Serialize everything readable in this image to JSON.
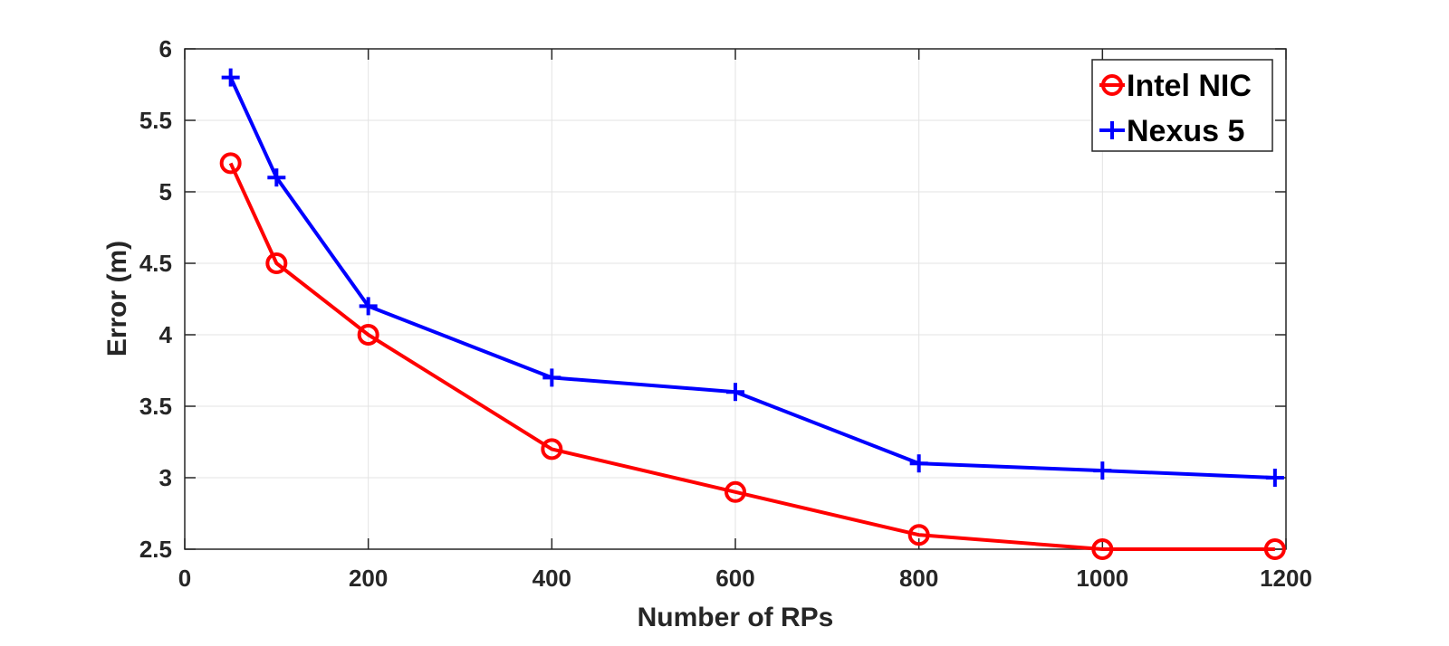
{
  "chart_data": {
    "type": "line",
    "xlabel": "Number of RPs",
    "ylabel": "Error (m)",
    "xlim": [
      0,
      1200
    ],
    "ylim": [
      2.5,
      6
    ],
    "xticks": [
      "0",
      "200",
      "400",
      "600",
      "800",
      "1000",
      "1200"
    ],
    "yticks": [
      "2.5",
      "3",
      "3.5",
      "4",
      "4.5",
      "5",
      "5.5",
      "6"
    ],
    "grid": true,
    "legend_position": "top-right",
    "series": [
      {
        "name": "Intel NIC",
        "color": "#ff0000",
        "marker": "circle",
        "x": [
          50,
          100,
          200,
          400,
          600,
          800,
          1000,
          1188
        ],
        "y": [
          5.2,
          4.5,
          4.0,
          3.2,
          2.9,
          2.6,
          2.5,
          2.5
        ]
      },
      {
        "name": "Nexus 5",
        "color": "#0000ff",
        "marker": "plus",
        "x": [
          50,
          100,
          200,
          400,
          600,
          800,
          1000,
          1188
        ],
        "y": [
          5.8,
          5.1,
          4.2,
          3.7,
          3.6,
          3.1,
          3.05,
          3.0
        ]
      }
    ]
  }
}
